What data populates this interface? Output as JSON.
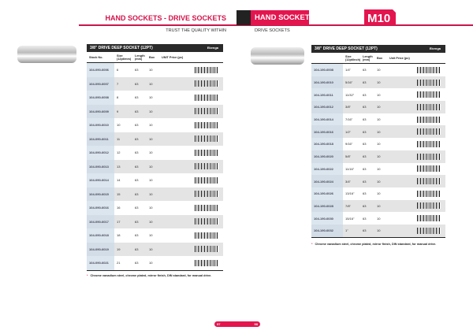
{
  "header": {
    "left_title": "HAND SOCKETS - DRIVE SOCKETS",
    "right_title": "HAND SOCKETS",
    "left_sub": "TRUST THE QUALITY WITHIN",
    "right_sub": "DRIVE SOCKETS",
    "logo": "M10",
    "accent": "#e3154f"
  },
  "left_table": {
    "title": "3/8\" DRIVE DEEP SOCKET (12PT)",
    "brand": "Ekenga",
    "cols": [
      "Stock No.",
      "Size (12pt/mm)",
      "Length (mm)",
      "Box",
      "UNIT Price (pc)"
    ],
    "rows": [
      [
        "104-090-6006",
        "6",
        "63",
        "10"
      ],
      [
        "104-090-6007",
        "7",
        "63",
        "10"
      ],
      [
        "104-090-6008",
        "8",
        "63",
        "10"
      ],
      [
        "104-090-6009",
        "9",
        "63",
        "10"
      ],
      [
        "104-090-6010",
        "10",
        "63",
        "10"
      ],
      [
        "104-090-6011",
        "11",
        "63",
        "10"
      ],
      [
        "104-090-6012",
        "12",
        "63",
        "10"
      ],
      [
        "104-090-6013",
        "13",
        "63",
        "10"
      ],
      [
        "104-090-6014",
        "14",
        "63",
        "10"
      ],
      [
        "104-090-6015",
        "15",
        "63",
        "10"
      ],
      [
        "104-090-6016",
        "16",
        "63",
        "10"
      ],
      [
        "104-090-6017",
        "17",
        "63",
        "10"
      ],
      [
        "104-090-6018",
        "18",
        "63",
        "10"
      ],
      [
        "104-090-6019",
        "19",
        "63",
        "10"
      ],
      [
        "104-090-6021",
        "21",
        "63",
        "10"
      ]
    ],
    "footnote": "Chrome vanadium steel, chrome plated, mirror finish, DIN standard, for manual drive."
  },
  "right_table": {
    "title": "3/8\" DRIVE DEEP SOCKET (12PT)",
    "brand": "Ekenga",
    "cols": [
      "",
      "Size (12pt/inch)",
      "Length (mm)",
      "Box",
      "Unit Price (pc)"
    ],
    "rows": [
      [
        "104-190-6008",
        "1/4\"",
        "63",
        "10"
      ],
      [
        "104-190-6010",
        "5/16\"",
        "63",
        "10"
      ],
      [
        "104-190-6011",
        "11/32\"",
        "63",
        "10"
      ],
      [
        "104-190-6012",
        "3/8\"",
        "63",
        "10"
      ],
      [
        "104-190-6014",
        "7/16\"",
        "63",
        "10"
      ],
      [
        "104-190-6016",
        "1/2\"",
        "63",
        "10"
      ],
      [
        "104-190-6018",
        "9/16\"",
        "63",
        "10"
      ],
      [
        "104-190-6020",
        "5/8\"",
        "63",
        "10"
      ],
      [
        "104-190-6022",
        "11/16\"",
        "63",
        "10"
      ],
      [
        "104-190-6024",
        "3/4\"",
        "63",
        "10"
      ],
      [
        "104-190-6026",
        "13/16\"",
        "63",
        "10"
      ],
      [
        "104-190-6028",
        "7/8\"",
        "63",
        "10"
      ],
      [
        "104-190-6030",
        "15/16\"",
        "63",
        "10"
      ],
      [
        "104-190-6032",
        "1\"",
        "63",
        "10"
      ]
    ],
    "footnote": "Chrome vanadium steel, chrome plated, mirror finish, DIN standard, for manual drive."
  },
  "pages": {
    "left": "97",
    "right": "98"
  }
}
